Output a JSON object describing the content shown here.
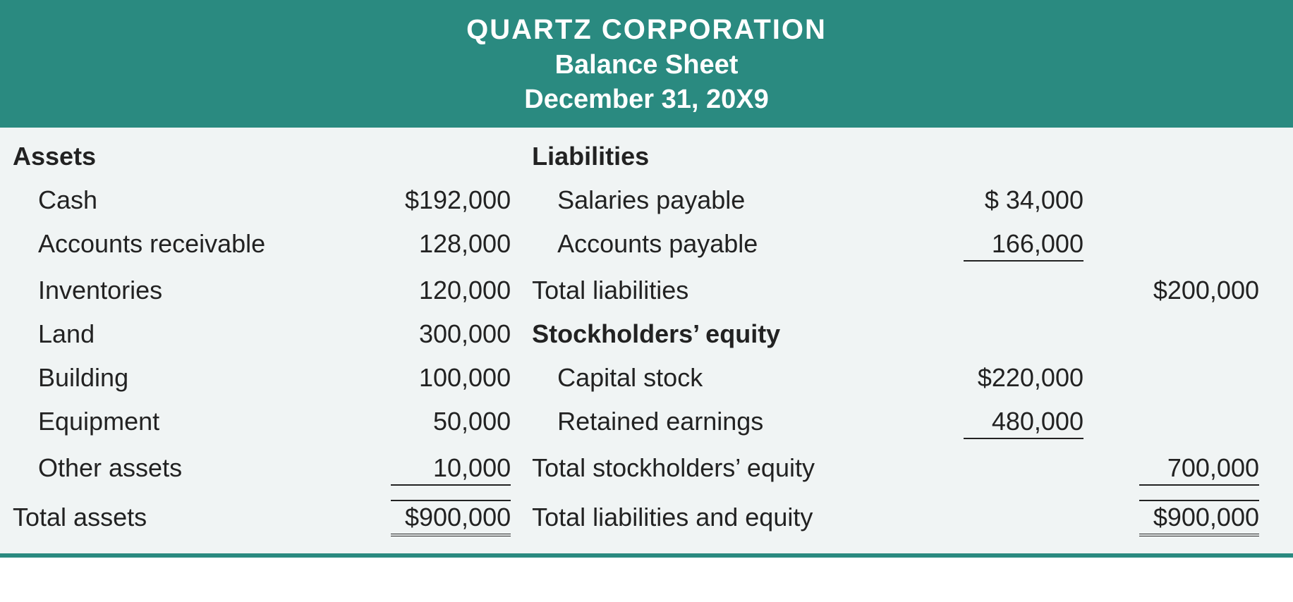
{
  "header": {
    "company": "QUARTZ CORPORATION",
    "title": "Balance Sheet",
    "date": "December 31, 20X9"
  },
  "colors": {
    "header_bg": "#2a8a80",
    "header_text": "#ffffff",
    "body_bg": "#f0f4f4",
    "text": "#222222",
    "rule": "#222222"
  },
  "typography": {
    "header_fontsize_pt": 30,
    "body_fontsize_pt": 27,
    "font_family": "Myriad Pro / sans-serif"
  },
  "balance_sheet": {
    "type": "table",
    "left": {
      "section_header": "Assets",
      "items": [
        {
          "label": "Cash",
          "value": "$192,000"
        },
        {
          "label": "Accounts receivable",
          "value": "128,000"
        },
        {
          "label": "Inventories",
          "value": "120,000"
        },
        {
          "label": "Land",
          "value": "300,000"
        },
        {
          "label": "Building",
          "value": "100,000"
        },
        {
          "label": "Equipment",
          "value": "50,000"
        },
        {
          "label": "Other assets",
          "value": "10,000",
          "underline": true
        }
      ],
      "total_label": "Total assets",
      "total_value": "$900,000"
    },
    "right": {
      "liab_header": "Liabilities",
      "liab_items": [
        {
          "label": "Salaries payable",
          "value": "$  34,000"
        },
        {
          "label": "Accounts payable",
          "value": "166,000",
          "underline": true
        }
      ],
      "liab_total_label": "Total liabilities",
      "liab_total_value": "$200,000",
      "eq_header": "Stockholders’ equity",
      "eq_items": [
        {
          "label": "Capital stock",
          "value": "$220,000"
        },
        {
          "label": "Retained earnings",
          "value": "480,000",
          "underline": true
        }
      ],
      "eq_total_label": "Total stockholders’ equity",
      "eq_total_value": "700,000",
      "grand_total_label": "Total liabilities and equity",
      "grand_total_value": "$900,000"
    }
  }
}
